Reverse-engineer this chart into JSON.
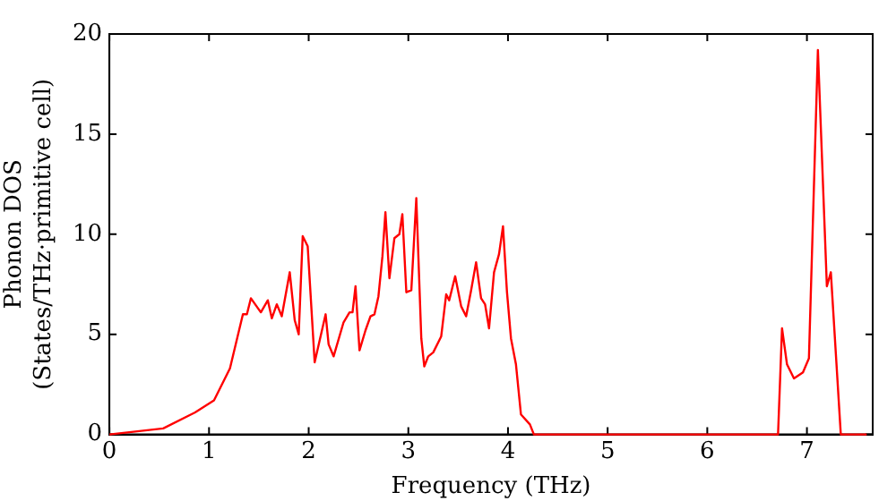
{
  "chart_data": {
    "type": "line",
    "xlabel": "Frequency (THz)",
    "ylabel": "Phonon DOS\n(States/THz·primitive cell)",
    "xlim": [
      0,
      7.66
    ],
    "ylim": [
      0,
      20
    ],
    "xticks": [
      0,
      1,
      2,
      3,
      4,
      5,
      6,
      7
    ],
    "yticks": [
      0,
      5,
      10,
      15,
      20
    ],
    "grid": false,
    "legend": false,
    "marker": "none",
    "line_style": "solid",
    "series": [
      {
        "color": "#ff0000",
        "x": [
          0,
          0.54,
          0.86,
          1.05,
          1.21,
          1.34,
          1.38,
          1.42,
          1.52,
          1.59,
          1.63,
          1.68,
          1.73,
          1.81,
          1.86,
          1.9,
          1.94,
          1.99,
          2.06,
          2.17,
          2.2,
          2.25,
          2.35,
          2.41,
          2.44,
          2.47,
          2.51,
          2.57,
          2.62,
          2.66,
          2.7,
          2.74,
          2.77,
          2.81,
          2.86,
          2.91,
          2.94,
          2.98,
          3.03,
          3.08,
          3.13,
          3.16,
          3.2,
          3.25,
          3.33,
          3.38,
          3.41,
          3.47,
          3.53,
          3.58,
          3.63,
          3.68,
          3.73,
          3.77,
          3.81,
          3.86,
          3.91,
          3.95,
          3.99,
          4.03,
          4.08,
          4.13,
          4.22,
          4.26,
          6.71,
          6.75,
          6.8,
          6.87,
          6.96,
          7.02,
          7.11,
          7.2,
          7.24,
          7.34,
          7.6
        ],
        "values": [
          0,
          0.3,
          1.1,
          1.7,
          3.3,
          6,
          6,
          6.8,
          6.1,
          6.7,
          5.8,
          6.5,
          5.9,
          8.1,
          5.7,
          5,
          9.9,
          9.4,
          3.6,
          6,
          4.5,
          3.9,
          5.6,
          6.1,
          6.1,
          7.4,
          4.2,
          5.2,
          5.9,
          6,
          6.9,
          8.9,
          11.1,
          7.8,
          9.8,
          10,
          11,
          7.1,
          7.2,
          11.8,
          4.8,
          3.4,
          3.9,
          4.1,
          4.9,
          7,
          6.7,
          7.9,
          6.4,
          5.9,
          7.2,
          8.6,
          6.8,
          6.5,
          5.3,
          8.1,
          9,
          10.4,
          7.1,
          4.8,
          3.5,
          1,
          0.5,
          0,
          0,
          5.3,
          3.5,
          2.8,
          3.1,
          3.8,
          19.2,
          7.4,
          8.1,
          0,
          0
        ]
      }
    ]
  }
}
